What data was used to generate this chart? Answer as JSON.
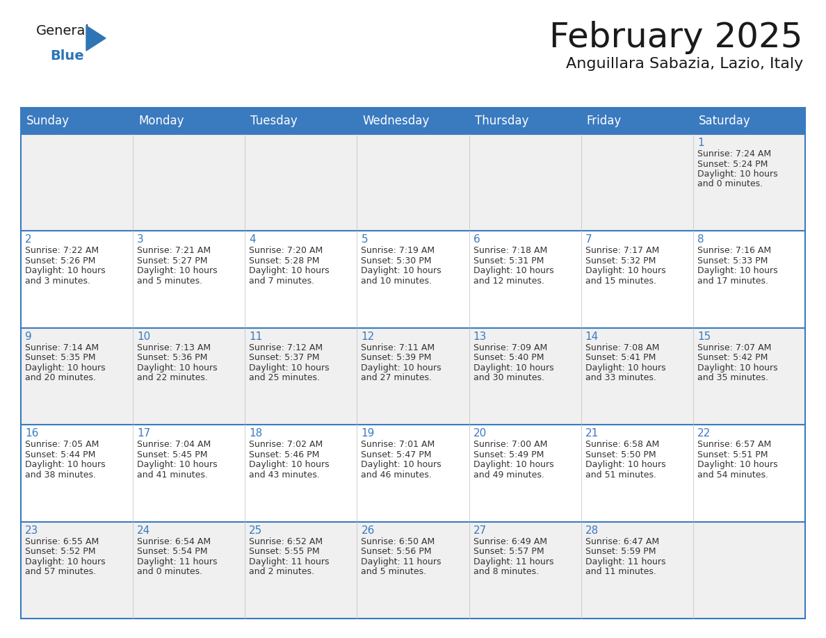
{
  "title": "February 2025",
  "subtitle": "Anguillara Sabazia, Lazio, Italy",
  "header_bg": "#3a7abf",
  "header_text": "#ffffff",
  "row_bg_even": "#f0f0f0",
  "row_bg_odd": "#ffffff",
  "grid_line_color": "#3a7abf",
  "day_number_color": "#3a7abf",
  "cell_text_color": "#333333",
  "weekdays": [
    "Sunday",
    "Monday",
    "Tuesday",
    "Wednesday",
    "Thursday",
    "Friday",
    "Saturday"
  ],
  "weeks": [
    [
      {
        "day": null,
        "sunrise": null,
        "sunset": null,
        "daylight": null
      },
      {
        "day": null,
        "sunrise": null,
        "sunset": null,
        "daylight": null
      },
      {
        "day": null,
        "sunrise": null,
        "sunset": null,
        "daylight": null
      },
      {
        "day": null,
        "sunrise": null,
        "sunset": null,
        "daylight": null
      },
      {
        "day": null,
        "sunrise": null,
        "sunset": null,
        "daylight": null
      },
      {
        "day": null,
        "sunrise": null,
        "sunset": null,
        "daylight": null
      },
      {
        "day": 1,
        "sunrise": "7:24 AM",
        "sunset": "5:24 PM",
        "daylight": "10 hours and 0 minutes."
      }
    ],
    [
      {
        "day": 2,
        "sunrise": "7:22 AM",
        "sunset": "5:26 PM",
        "daylight": "10 hours and 3 minutes."
      },
      {
        "day": 3,
        "sunrise": "7:21 AM",
        "sunset": "5:27 PM",
        "daylight": "10 hours and 5 minutes."
      },
      {
        "day": 4,
        "sunrise": "7:20 AM",
        "sunset": "5:28 PM",
        "daylight": "10 hours and 7 minutes."
      },
      {
        "day": 5,
        "sunrise": "7:19 AM",
        "sunset": "5:30 PM",
        "daylight": "10 hours and 10 minutes."
      },
      {
        "day": 6,
        "sunrise": "7:18 AM",
        "sunset": "5:31 PM",
        "daylight": "10 hours and 12 minutes."
      },
      {
        "day": 7,
        "sunrise": "7:17 AM",
        "sunset": "5:32 PM",
        "daylight": "10 hours and 15 minutes."
      },
      {
        "day": 8,
        "sunrise": "7:16 AM",
        "sunset": "5:33 PM",
        "daylight": "10 hours and 17 minutes."
      }
    ],
    [
      {
        "day": 9,
        "sunrise": "7:14 AM",
        "sunset": "5:35 PM",
        "daylight": "10 hours and 20 minutes."
      },
      {
        "day": 10,
        "sunrise": "7:13 AM",
        "sunset": "5:36 PM",
        "daylight": "10 hours and 22 minutes."
      },
      {
        "day": 11,
        "sunrise": "7:12 AM",
        "sunset": "5:37 PM",
        "daylight": "10 hours and 25 minutes."
      },
      {
        "day": 12,
        "sunrise": "7:11 AM",
        "sunset": "5:39 PM",
        "daylight": "10 hours and 27 minutes."
      },
      {
        "day": 13,
        "sunrise": "7:09 AM",
        "sunset": "5:40 PM",
        "daylight": "10 hours and 30 minutes."
      },
      {
        "day": 14,
        "sunrise": "7:08 AM",
        "sunset": "5:41 PM",
        "daylight": "10 hours and 33 minutes."
      },
      {
        "day": 15,
        "sunrise": "7:07 AM",
        "sunset": "5:42 PM",
        "daylight": "10 hours and 35 minutes."
      }
    ],
    [
      {
        "day": 16,
        "sunrise": "7:05 AM",
        "sunset": "5:44 PM",
        "daylight": "10 hours and 38 minutes."
      },
      {
        "day": 17,
        "sunrise": "7:04 AM",
        "sunset": "5:45 PM",
        "daylight": "10 hours and 41 minutes."
      },
      {
        "day": 18,
        "sunrise": "7:02 AM",
        "sunset": "5:46 PM",
        "daylight": "10 hours and 43 minutes."
      },
      {
        "day": 19,
        "sunrise": "7:01 AM",
        "sunset": "5:47 PM",
        "daylight": "10 hours and 46 minutes."
      },
      {
        "day": 20,
        "sunrise": "7:00 AM",
        "sunset": "5:49 PM",
        "daylight": "10 hours and 49 minutes."
      },
      {
        "day": 21,
        "sunrise": "6:58 AM",
        "sunset": "5:50 PM",
        "daylight": "10 hours and 51 minutes."
      },
      {
        "day": 22,
        "sunrise": "6:57 AM",
        "sunset": "5:51 PM",
        "daylight": "10 hours and 54 minutes."
      }
    ],
    [
      {
        "day": 23,
        "sunrise": "6:55 AM",
        "sunset": "5:52 PM",
        "daylight": "10 hours and 57 minutes."
      },
      {
        "day": 24,
        "sunrise": "6:54 AM",
        "sunset": "5:54 PM",
        "daylight": "11 hours and 0 minutes."
      },
      {
        "day": 25,
        "sunrise": "6:52 AM",
        "sunset": "5:55 PM",
        "daylight": "11 hours and 2 minutes."
      },
      {
        "day": 26,
        "sunrise": "6:50 AM",
        "sunset": "5:56 PM",
        "daylight": "11 hours and 5 minutes."
      },
      {
        "day": 27,
        "sunrise": "6:49 AM",
        "sunset": "5:57 PM",
        "daylight": "11 hours and 8 minutes."
      },
      {
        "day": 28,
        "sunrise": "6:47 AM",
        "sunset": "5:59 PM",
        "daylight": "11 hours and 11 minutes."
      },
      {
        "day": null,
        "sunrise": null,
        "sunset": null,
        "daylight": null
      }
    ]
  ],
  "logo_triangle_color": "#2e75b6",
  "title_fontsize": 36,
  "subtitle_fontsize": 16,
  "header_fontsize": 12,
  "day_num_fontsize": 11,
  "cell_fontsize": 9
}
